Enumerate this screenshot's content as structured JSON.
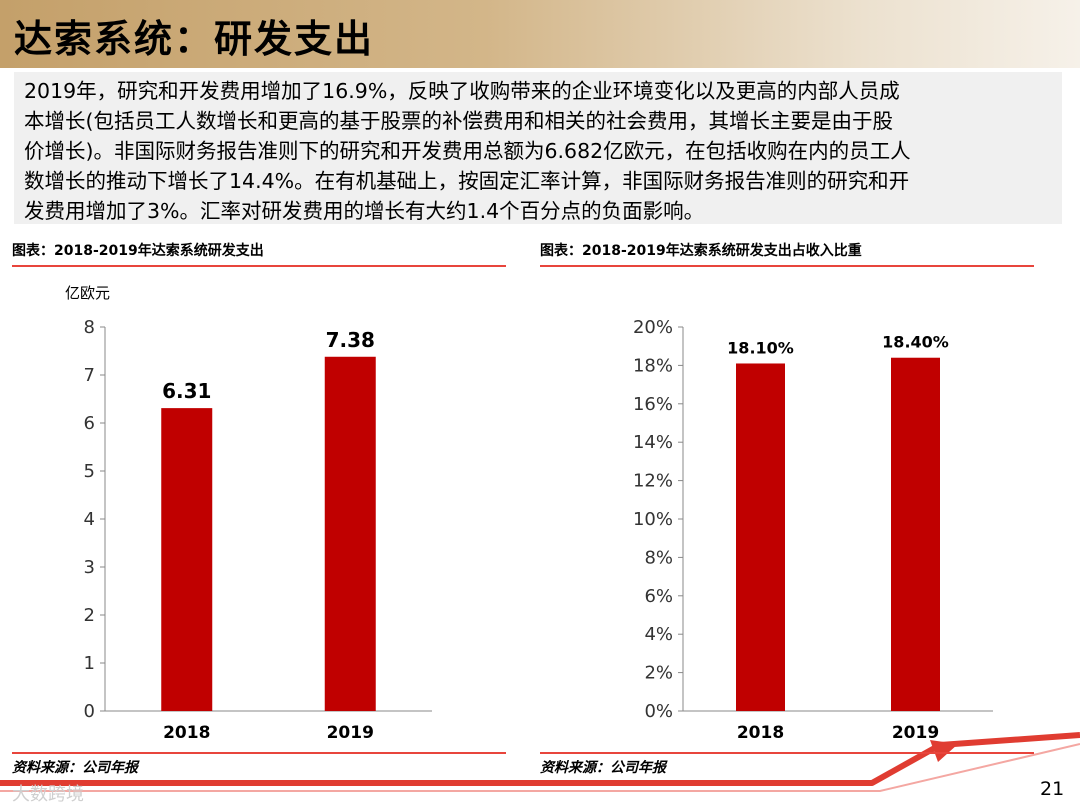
{
  "header": {
    "title": "达索系统：研发支出"
  },
  "summary": {
    "lines": [
      "2019年，研究和开发费用增加了16.9%，反映了收购带来的企业环境变化以及更高的内部人员成",
      "本增长(包括员工人数增长和更高的基于股票的补偿费用和相关的社会费用，其增长主要是由于股",
      "价增长)。非国际财务报告准则下的研究和开发费用总额为6.682亿欧元，在包括收购在内的员工人",
      "数增长的推动下增长了14.4%。在有机基础上，按固定汇率计算，非国际财务报告准则的研究和开",
      "发费用增加了3%。汇率对研发费用的增长有大约1.4个百分点的负面影响。"
    ]
  },
  "left": {
    "caption": "图表：2018-2019年达索系统研发支出",
    "source": "资料来源：公司年报"
  },
  "right": {
    "caption": "图表：2018-2019年达索系统研发支出占收入比重",
    "source": "资料来源：公司年报"
  },
  "footer": {
    "page_number": "21",
    "watermark": "大数跨境"
  },
  "colors": {
    "bar": "#c00000",
    "rule": "#e8453c",
    "axis": "#888888"
  },
  "chart_data": [
    {
      "type": "bar",
      "title": "图表：2018-2019年达索系统研发支出",
      "unit_label": "亿欧元",
      "categories": [
        "2018",
        "2019"
      ],
      "values": [
        6.31,
        7.38
      ],
      "value_labels": [
        "6.31",
        "7.38"
      ],
      "ylim": [
        0,
        8
      ],
      "yticks": [
        "0",
        "1",
        "2",
        "3",
        "4",
        "5",
        "6",
        "7",
        "8"
      ],
      "grid": false
    },
    {
      "type": "bar",
      "title": "图表：2018-2019年达索系统研发支出占收入比重",
      "unit_label": "",
      "categories": [
        "2018",
        "2019"
      ],
      "values": [
        18.1,
        18.4
      ],
      "value_labels": [
        "18.10%",
        "18.40%"
      ],
      "ylim": [
        0,
        20
      ],
      "yticks": [
        "0%",
        "2%",
        "4%",
        "6%",
        "8%",
        "10%",
        "12%",
        "14%",
        "16%",
        "18%",
        "20%"
      ],
      "grid": false
    }
  ]
}
